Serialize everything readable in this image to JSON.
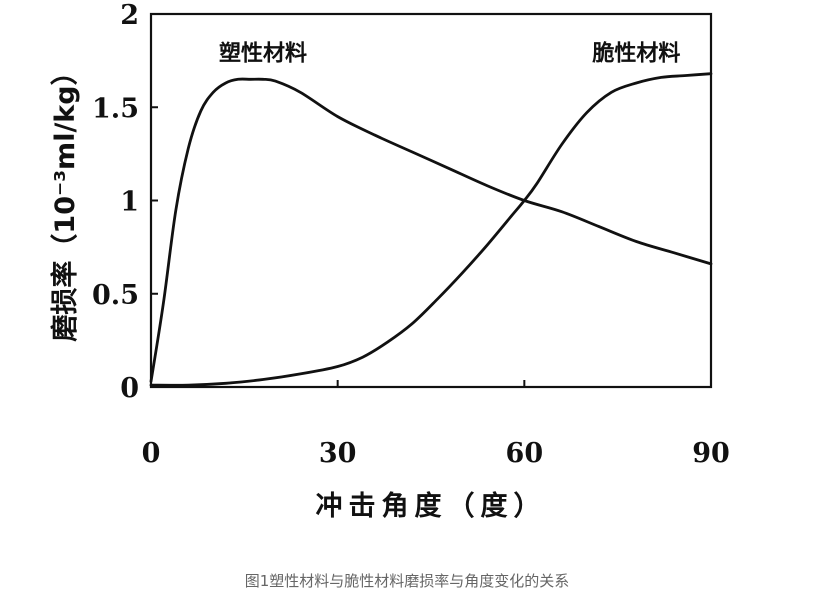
{
  "caption": "图1塑性材料与脆性材料磨损率与角度变化的关系",
  "chart_data": {
    "type": "line",
    "xlabel": "冲击角度（度）",
    "ylabel": "磨损率（10⁻³ml/kg）",
    "xlim": [
      0,
      90
    ],
    "ylim": [
      0,
      2
    ],
    "x_ticks": [
      {
        "value": 0,
        "label": "0"
      },
      {
        "value": 30,
        "label": "30"
      },
      {
        "value": 60,
        "label": "60"
      },
      {
        "value": 90,
        "label": "90"
      }
    ],
    "y_ticks": [
      {
        "value": 0,
        "label": "0"
      },
      {
        "value": 0.5,
        "label": "0.5"
      },
      {
        "value": 1,
        "label": "1"
      },
      {
        "value": 1.5,
        "label": "1.5"
      },
      {
        "value": 2,
        "label": "2"
      }
    ],
    "grid": false,
    "series": [
      {
        "name": "塑性材料",
        "x": [
          0,
          2,
          4,
          6,
          8,
          10,
          12,
          14,
          16,
          18,
          20,
          24,
          30,
          36,
          42,
          48,
          54,
          60,
          66,
          72,
          78,
          84,
          90
        ],
        "y": [
          0.03,
          0.45,
          0.95,
          1.28,
          1.48,
          1.58,
          1.63,
          1.65,
          1.65,
          1.65,
          1.64,
          1.58,
          1.45,
          1.35,
          1.26,
          1.17,
          1.08,
          1.0,
          0.94,
          0.86,
          0.78,
          0.72,
          0.66
        ],
        "label_x": 18,
        "label_y": 1.8
      },
      {
        "name": "脆性材料",
        "x": [
          0,
          6,
          12,
          18,
          24,
          30,
          34,
          38,
          42,
          46,
          50,
          54,
          58,
          60,
          62,
          66,
          70,
          74,
          78,
          82,
          86,
          90
        ],
        "y": [
          0.01,
          0.01,
          0.02,
          0.04,
          0.07,
          0.11,
          0.16,
          0.24,
          0.34,
          0.47,
          0.61,
          0.76,
          0.92,
          1.0,
          1.09,
          1.3,
          1.47,
          1.58,
          1.63,
          1.66,
          1.67,
          1.68
        ],
        "label_x": 78,
        "label_y": 1.8
      }
    ]
  }
}
